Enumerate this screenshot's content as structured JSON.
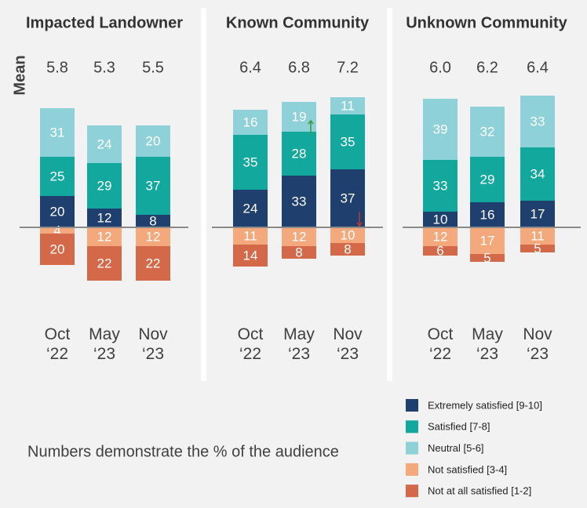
{
  "chart_data": [
    {
      "type": "diverging_bar",
      "title": "Impacted Landowner",
      "categories": [
        "Oct ‘22",
        "May ‘23",
        "Nov ‘23"
      ],
      "mean": {
        "values": [
          5.8,
          5.3,
          5.5
        ],
        "value_labels": [
          "5.8",
          "5.3",
          "5.5"
        ]
      },
      "series": [
        {
          "values": [
            20,
            12,
            8
          ]
        },
        {
          "values": [
            25,
            29,
            37
          ]
        },
        {
          "values": [
            31,
            24,
            20
          ]
        },
        {
          "values": [
            4,
            12,
            12
          ]
        },
        {
          "values": [
            20,
            22,
            22
          ]
        }
      ]
    },
    {
      "type": "diverging_bar",
      "title": "Known Community",
      "categories": [
        "Oct ‘22",
        "May ‘23",
        "Nov ‘23"
      ],
      "mean": {
        "values": [
          6.4,
          6.8,
          7.2
        ],
        "value_labels": [
          "6.4",
          "6.8",
          "7.2"
        ]
      },
      "series": [
        {
          "values": [
            24,
            33,
            37
          ]
        },
        {
          "values": [
            35,
            28,
            35
          ]
        },
        {
          "values": [
            16,
            19,
            11
          ]
        },
        {
          "values": [
            11,
            12,
            10
          ]
        },
        {
          "values": [
            14,
            8,
            8
          ]
        }
      ],
      "markers": [
        {
          "series": 0,
          "index": 1,
          "direction": "up",
          "color": "#3a9a3a"
        },
        {
          "series": 2,
          "index": 2,
          "direction": "down",
          "color": "#c0392b"
        }
      ]
    },
    {
      "type": "diverging_bar",
      "title": "Unknown Community",
      "categories": [
        "Oct ‘22",
        "May ‘23",
        "Nov ‘23"
      ],
      "mean": {
        "values": [
          6.0,
          6.2,
          6.4
        ],
        "value_labels": [
          "6.0",
          "6.2",
          "6.4"
        ]
      },
      "series": [
        {
          "values": [
            10,
            16,
            17
          ]
        },
        {
          "values": [
            33,
            29,
            34
          ]
        },
        {
          "values": [
            39,
            32,
            33
          ]
        },
        {
          "values": [
            12,
            17,
            11
          ]
        },
        {
          "values": [
            6,
            5,
            5
          ]
        }
      ]
    }
  ],
  "legend": [
    {
      "name": "Extremely satisfied [9-10]",
      "color": "#1f3f6e",
      "side": "above"
    },
    {
      "name": "Satisfied [7-8]",
      "color": "#13a89e",
      "side": "above"
    },
    {
      "name": "Neutral [5-6]",
      "color": "#8fd1d8",
      "side": "above"
    },
    {
      "name": "Not satisfied [3-4]",
      "color": "#f3a97c",
      "side": "below"
    },
    {
      "name": "Not at all satisfied [1-2]",
      "color": "#d4694a",
      "side": "below"
    }
  ],
  "mean_label": "Mean",
  "note": "Numbers demonstrate the % of the audience"
}
